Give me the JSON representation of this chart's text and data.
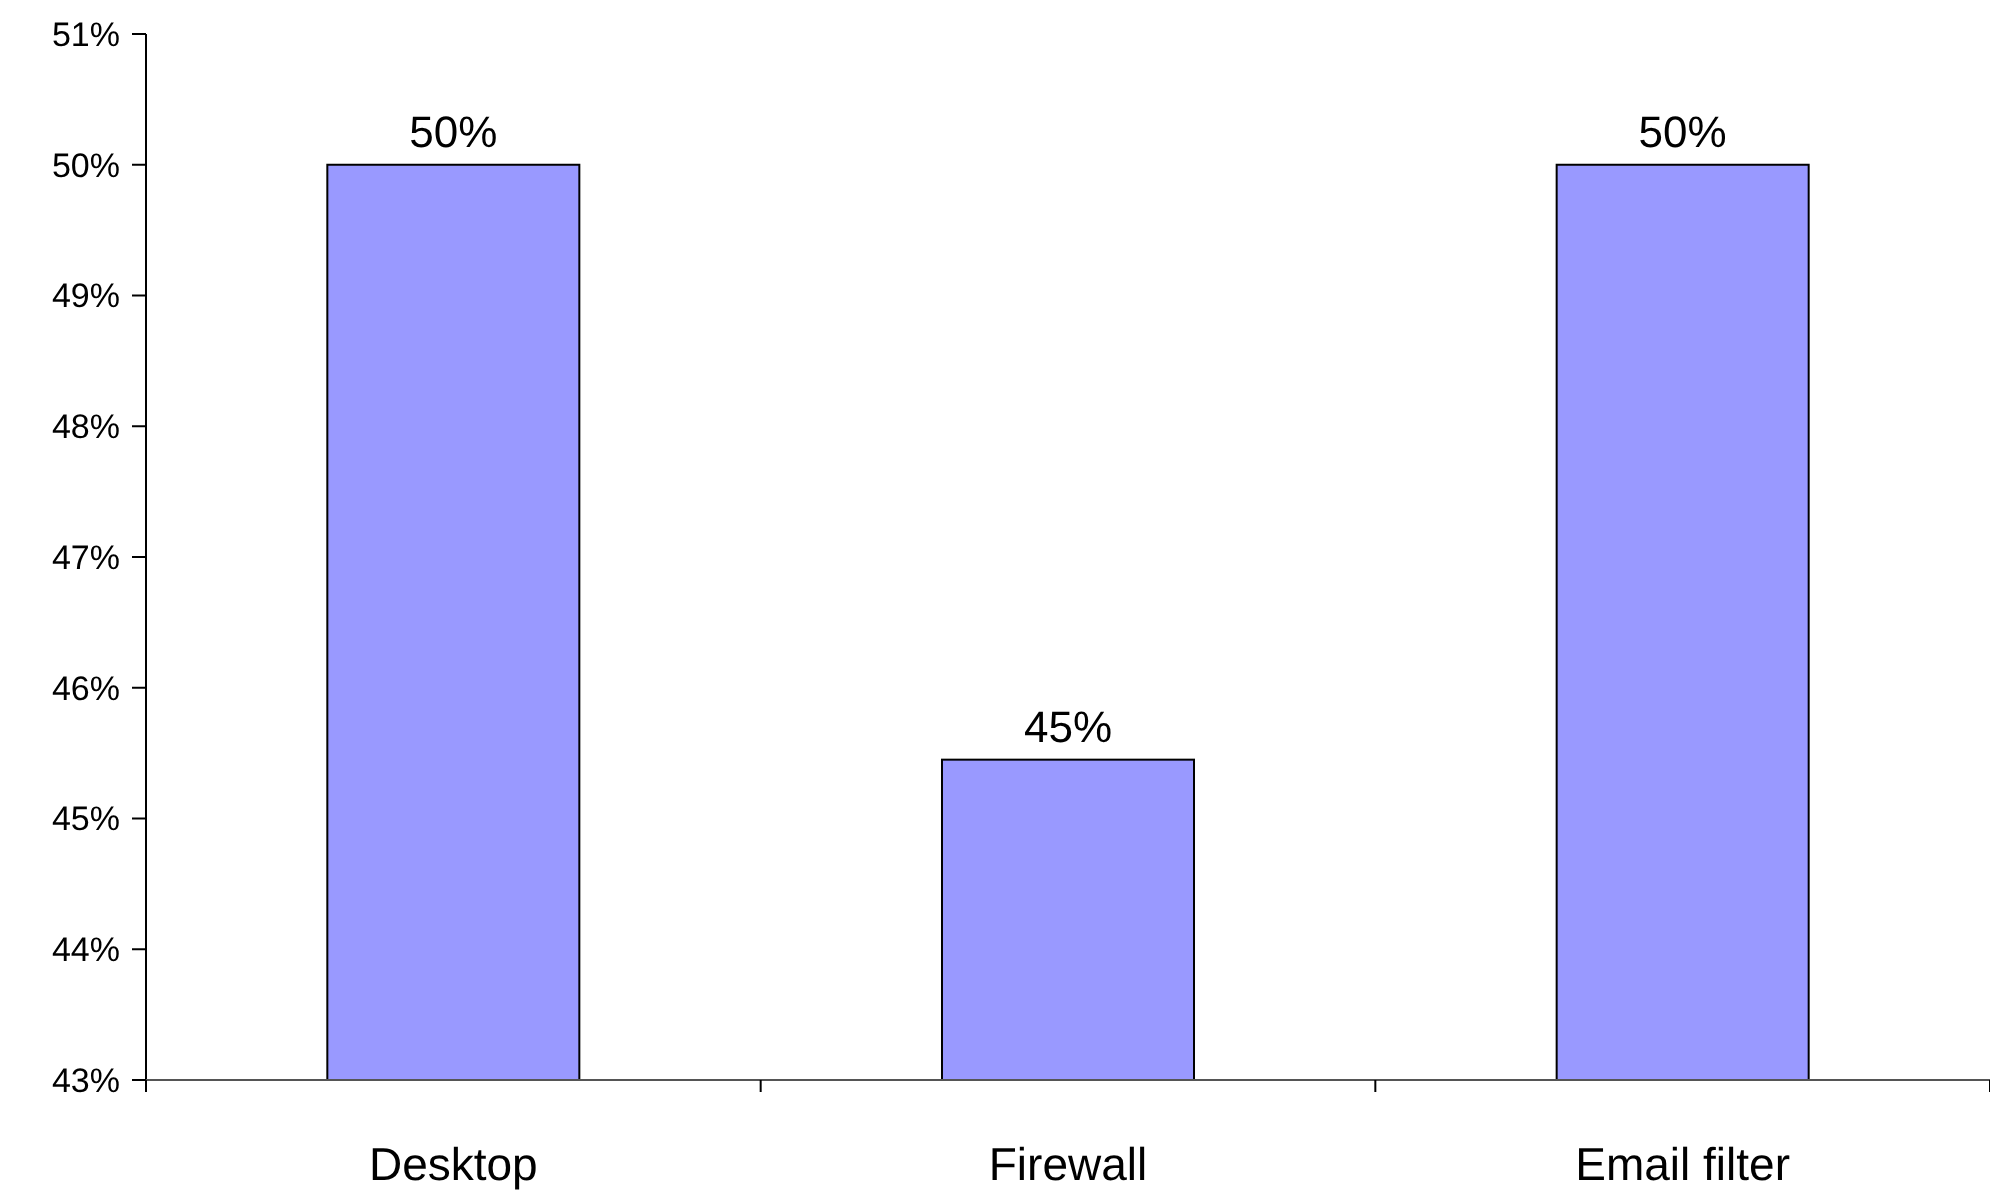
{
  "chart_data": {
    "type": "bar",
    "categories": [
      "Desktop",
      "Firewall",
      "Email filter"
    ],
    "values": [
      50,
      45.45,
      50
    ],
    "value_labels": [
      "50%",
      "45%",
      "50%"
    ],
    "color": "#9999ff",
    "ylim": [
      43,
      51
    ],
    "yticks": [
      {
        "value": 43,
        "label": "43%"
      },
      {
        "value": 44,
        "label": "44%"
      },
      {
        "value": 45,
        "label": "45%"
      },
      {
        "value": 46,
        "label": "46%"
      },
      {
        "value": 47,
        "label": "47%"
      },
      {
        "value": 48,
        "label": "48%"
      },
      {
        "value": 49,
        "label": "49%"
      },
      {
        "value": 50,
        "label": "50%"
      },
      {
        "value": 51,
        "label": "51%"
      }
    ],
    "grid": false
  }
}
